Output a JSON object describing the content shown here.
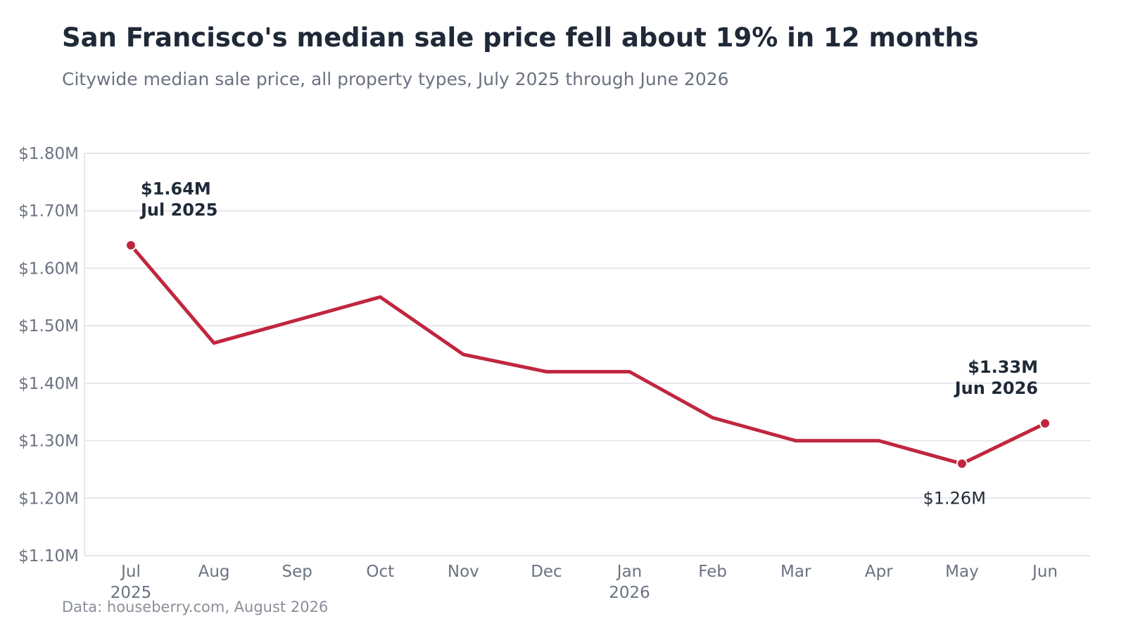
{
  "header": {
    "title": "San Francisco's median sale price fell about 19% in 12 months",
    "subtitle": "Citywide median sale price, all property types, July 2025 through June 2026"
  },
  "footer": {
    "source": "Data: houseberry.com, August 2026"
  },
  "colors": {
    "line": "#c0273f",
    "grid": "#e5e7eb",
    "text": "#1f2937",
    "muted": "#6b7280"
  },
  "chart_data": {
    "type": "line",
    "title": "San Francisco's median sale price fell about 19% in 12 months",
    "subtitle": "Citywide median sale price, all property types, July 2025 through June 2026",
    "xlabel": "",
    "ylabel": "",
    "categories": [
      "Jul",
      "Aug",
      "Sep",
      "Oct",
      "Nov",
      "Dec",
      "Jan",
      "Feb",
      "Mar",
      "Apr",
      "May",
      "Jun"
    ],
    "year_labels": [
      "2025",
      "",
      "",
      "",
      "",
      "",
      "2026",
      "",
      "",
      "",
      "",
      ""
    ],
    "series": [
      {
        "values": [
          1.64,
          1.47,
          1.51,
          1.55,
          1.45,
          1.42,
          1.42,
          1.34,
          1.3,
          1.3,
          1.26,
          1.33
        ]
      }
    ],
    "unit": "millions USD",
    "ylim": [
      1.1,
      1.8
    ],
    "yticks": [
      1.1,
      1.2,
      1.3,
      1.4,
      1.5,
      1.6,
      1.7,
      1.8
    ],
    "ytick_labels": [
      "$1.10M",
      "$1.20M",
      "$1.30M",
      "$1.40M",
      "$1.50M",
      "$1.60M",
      "$1.70M",
      "$1.80M"
    ],
    "grid": true,
    "legend": "none",
    "highlighted_points": [
      0,
      10,
      11
    ],
    "annotations": [
      {
        "index": 0,
        "lines": [
          "$1.64M",
          "Jul 2025"
        ],
        "style": "bold",
        "position": "above-right"
      },
      {
        "index": 10,
        "lines": [
          "$1.26M"
        ],
        "style": "plain",
        "position": "below-left"
      },
      {
        "index": 11,
        "lines": [
          "$1.33M",
          "Jun 2026"
        ],
        "style": "bold",
        "position": "above-left"
      }
    ]
  }
}
